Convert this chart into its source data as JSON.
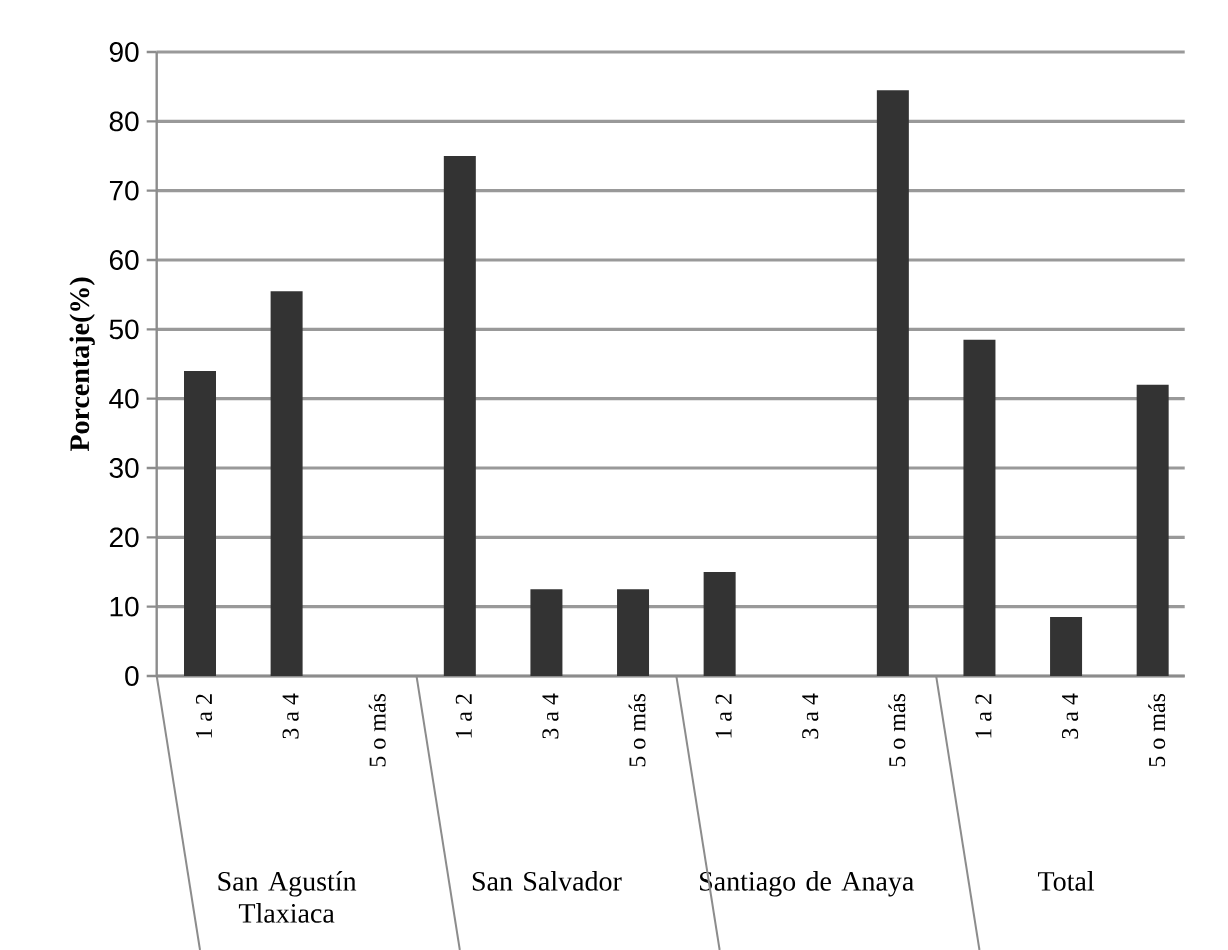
{
  "chart_data": {
    "type": "bar",
    "ylabel": "Porcentaje(%)",
    "categories": [
      "1 a 2",
      "3 a 4",
      "5 o más",
      "1 a 2",
      "3 a 4",
      "5 o más",
      "1 a 2",
      "3 a 4",
      "5 o más",
      "1 a 2",
      "3 a 4",
      "5 o más"
    ],
    "values": [
      44,
      55.5,
      0,
      75,
      12.5,
      12.5,
      15,
      0,
      84.5,
      48.5,
      8.5,
      42
    ],
    "color": "#333333",
    "ylim": [
      0,
      90
    ],
    "yticks": [
      0,
      10,
      20,
      30,
      40,
      50,
      60,
      70,
      80,
      90
    ],
    "grid": "y",
    "annotations": [
      "San Agustín Tlaxiaca",
      "San Salvador",
      "Santiago de Anaya",
      "Total"
    ]
  }
}
